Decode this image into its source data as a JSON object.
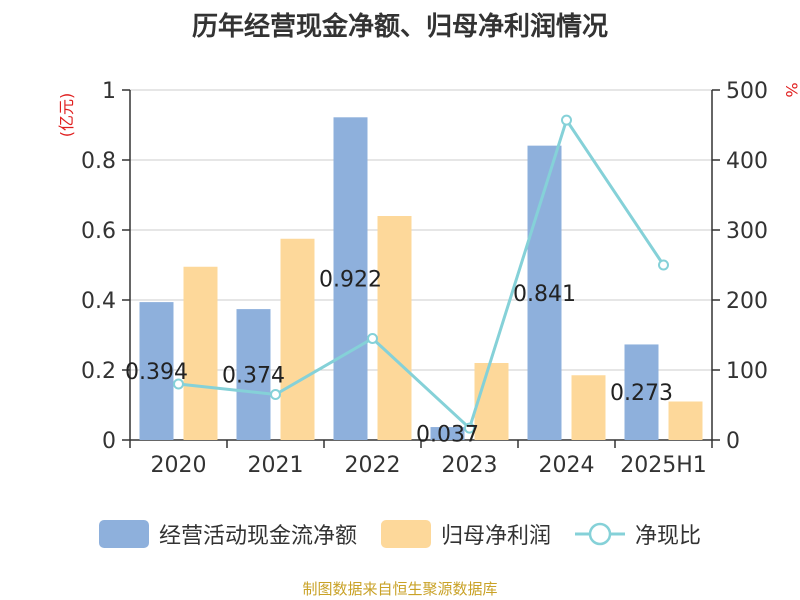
{
  "title": "历年经营现金净额、归母净利润情况",
  "source_note": "制图数据来自恒生聚源数据库",
  "chart_data": {
    "type": "bar",
    "title": "历年经营现金净额、归母净利润情况",
    "categories": [
      "2020",
      "2021",
      "2022",
      "2023",
      "2024",
      "2025H1"
    ],
    "left_axis": {
      "unit": "(亿元)",
      "ylim": [
        0,
        1
      ],
      "ticks": [
        "0",
        "0.2",
        "0.4",
        "0.6",
        "0.8",
        "1"
      ]
    },
    "right_axis": {
      "unit": "%",
      "ylim": [
        0,
        500
      ],
      "ticks": [
        "0",
        "100",
        "200",
        "300",
        "400",
        "500"
      ]
    },
    "grid": true,
    "legend_position": "bottom",
    "series": [
      {
        "name": "经营活动现金流净额",
        "type": "bar",
        "axis": "left",
        "color": "#8eb0dc",
        "values": [
          0.394,
          0.374,
          0.922,
          0.037,
          0.841,
          0.273
        ],
        "labels": [
          "0.394",
          "0.374",
          "0.922",
          "0.037",
          "0.841",
          "0.273"
        ]
      },
      {
        "name": "归母净利润",
        "type": "bar",
        "axis": "left",
        "color": "#fdd89a",
        "values": [
          0.495,
          0.575,
          0.64,
          0.22,
          0.185,
          0.11
        ]
      },
      {
        "name": "净现比",
        "type": "line",
        "axis": "right",
        "color": "#85d1d8",
        "values": [
          80,
          65,
          145,
          17,
          457,
          250
        ]
      }
    ]
  }
}
